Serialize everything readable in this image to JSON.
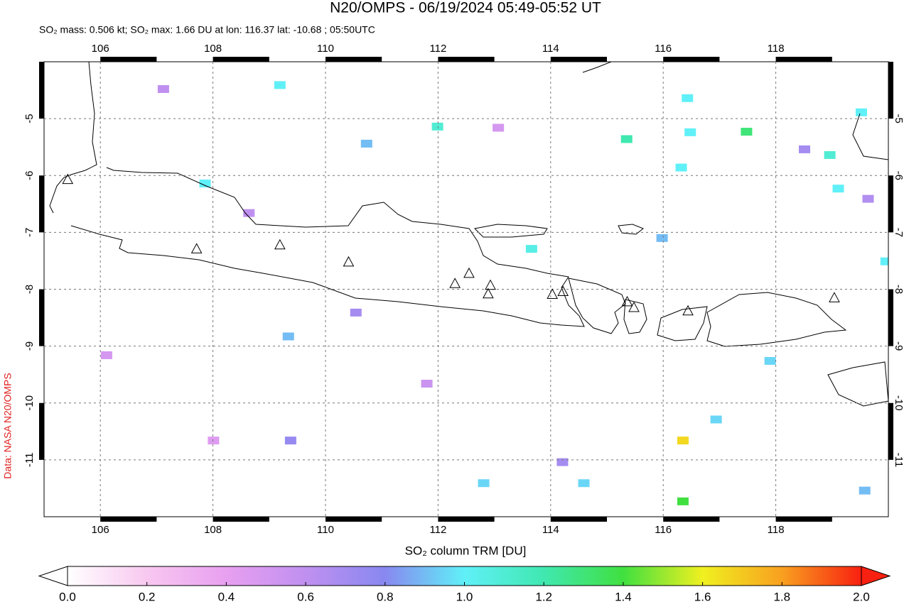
{
  "chart_data": {
    "type": "map",
    "title": "N20/OMPS - 06/19/2024 05:49-05:52 UT",
    "subtitle": "SO₂ mass: 0.506 kt; SO₂ max: 1.66 DU at lon: 116.37 lat: -10.68 ; 05:50UTC",
    "side_note": "Data: NASA N20/OMPS",
    "colorbar_label": "SO₂ column TRM [DU]",
    "xlim": [
      105,
      120
    ],
    "ylim": [
      -12,
      -4
    ],
    "xticks": [
      106,
      108,
      110,
      112,
      114,
      116,
      118
    ],
    "yticks": [
      -5,
      -6,
      -7,
      -8,
      -9,
      -10,
      -11
    ],
    "grid": true,
    "colorbar_lim": [
      0,
      2
    ],
    "colorbar_ticks": [
      {
        "value": 0,
        "label": "0.0"
      },
      {
        "value": 0.2,
        "label": "0.2"
      },
      {
        "value": 0.4,
        "label": "0.4"
      },
      {
        "value": 0.6,
        "label": "0.6"
      },
      {
        "value": 0.8,
        "label": "0.8"
      },
      {
        "value": 1,
        "label": "1.0"
      },
      {
        "value": 1.2,
        "label": "1.2"
      },
      {
        "value": 1.4,
        "label": "1.4"
      },
      {
        "value": 1.6,
        "label": "1.6"
      },
      {
        "value": 1.8,
        "label": "1.8"
      },
      {
        "value": 2,
        "label": "2.0"
      }
    ],
    "colors": [
      "#ffffff",
      "#f8c8f0",
      "#e8a0f0",
      "#c090f0",
      "#8888f0",
      "#60f0f8",
      "#40e8b0",
      "#40e040",
      "#f0f020",
      "#f8a020",
      "#f82010"
    ],
    "pixels": {
      "x": [
        109.19,
        111.99,
        110.73,
        107.86,
        113.66,
        109.34,
        116.35,
        116.35,
        117.48,
        118.96,
        119.11,
        116.48,
        115.35,
        116.43,
        119.52,
        117.9,
        116.94,
        112.81,
        114.59,
        119.58,
        119.96,
        116.32,
        115.98,
        109.38,
        107.12,
        110.54,
        114.21,
        118.51,
        119.64,
        108.64,
        111.8,
        106.11,
        108.01,
        113.07
      ],
      "y": [
        -4.41,
        -5.14,
        -5.44,
        -6.14,
        -7.29,
        -8.83,
        -10.66,
        -11.73,
        -5.23,
        -5.64,
        -6.23,
        -5.24,
        -5.36,
        -4.64,
        -4.89,
        -9.26,
        -10.29,
        -11.41,
        -11.41,
        -11.54,
        -7.51,
        -5.86,
        -7.1,
        -10.66,
        -4.48,
        -8.41,
        -11.04,
        -5.54,
        -6.41,
        -6.66,
        -9.66,
        -9.16,
        -10.66,
        -5.16
      ],
      "values": [
        1.0,
        1.1,
        0.9,
        1.0,
        1.05,
        0.9,
        1.66,
        1.4,
        1.3,
        1.1,
        1.0,
        1.0,
        1.2,
        1.0,
        1.0,
        0.95,
        0.95,
        0.95,
        0.95,
        0.9,
        1.0,
        1.0,
        0.9,
        0.75,
        0.6,
        0.7,
        0.7,
        0.7,
        0.65,
        0.6,
        0.55,
        0.5,
        0.45,
        0.5
      ]
    },
    "volcanoes": {
      "x": [
        105.42,
        107.71,
        109.19,
        110.41,
        112.3,
        112.55,
        112.93,
        112.89,
        114.03,
        114.22,
        115.36,
        115.48,
        116.44,
        119.04
      ],
      "y": [
        -6.08,
        -7.3,
        -7.23,
        -7.53,
        -7.91,
        -7.73,
        -7.94,
        -8.09,
        -8.1,
        -8.05,
        -8.23,
        -8.33,
        -8.39,
        -8.16
      ]
    }
  }
}
